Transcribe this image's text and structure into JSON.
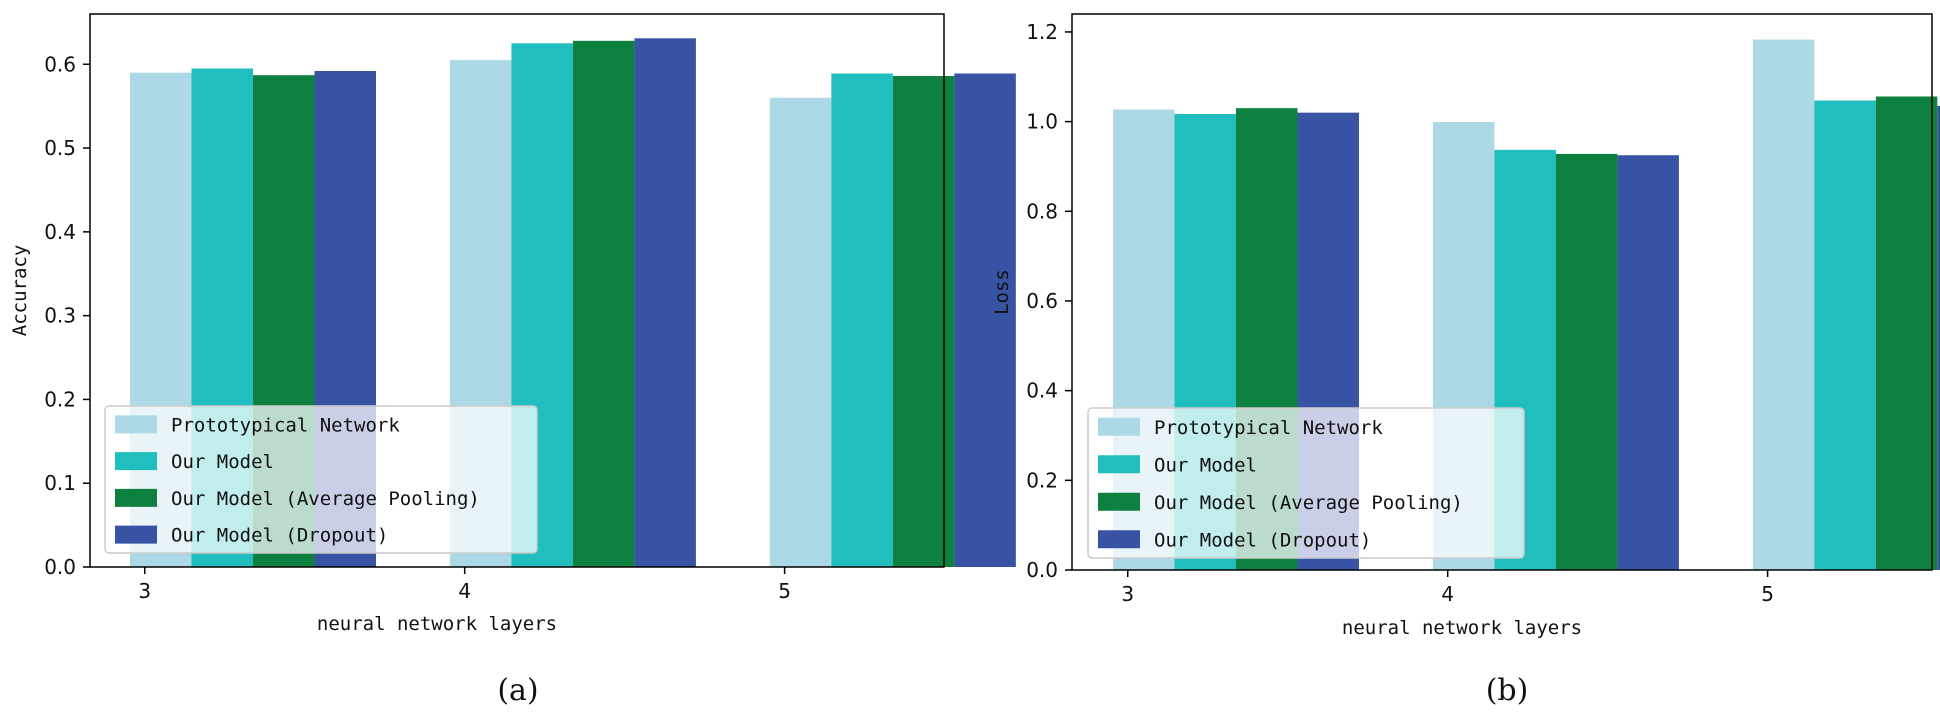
{
  "colors": {
    "proto": "#add8e6",
    "ours": "#20bebe",
    "avgpool": "#0e8040",
    "dropout": "#3953a4"
  },
  "chart_data": [
    {
      "type": "bar",
      "caption": "(a)",
      "xlabel": "neural network layers",
      "ylabel": "Accuracy",
      "categories": [
        "3",
        "4",
        "5"
      ],
      "ylim": [
        0,
        0.66
      ],
      "yticks": [
        {
          "value": 0.0,
          "label": "0.0"
        },
        {
          "value": 0.1,
          "label": "0.1"
        },
        {
          "value": 0.2,
          "label": "0.2"
        },
        {
          "value": 0.3,
          "label": "0.3"
        },
        {
          "value": 0.4,
          "label": "0.4"
        },
        {
          "value": 0.5,
          "label": "0.5"
        },
        {
          "value": 0.6,
          "label": "0.6"
        }
      ],
      "legend_position": "lower-left",
      "series": [
        {
          "name": "Prototypical Network",
          "color_key": "proto",
          "values": [
            0.59,
            0.605,
            0.56
          ]
        },
        {
          "name": "Our Model",
          "color_key": "ours",
          "values": [
            0.595,
            0.625,
            0.589
          ]
        },
        {
          "name": "Our Model (Average Pooling)",
          "color_key": "avgpool",
          "values": [
            0.587,
            0.628,
            0.586
          ]
        },
        {
          "name": "Our Model (Dropout)",
          "color_key": "dropout",
          "values": [
            0.592,
            0.631,
            0.589
          ]
        }
      ]
    },
    {
      "type": "bar",
      "caption": "(b)",
      "xlabel": "neural network layers",
      "ylabel": "Loss",
      "categories": [
        "3",
        "4",
        "5"
      ],
      "ylim": [
        0,
        1.24
      ],
      "yticks": [
        {
          "value": 0.0,
          "label": "0.0"
        },
        {
          "value": 0.2,
          "label": "0.2"
        },
        {
          "value": 0.4,
          "label": "0.4"
        },
        {
          "value": 0.6,
          "label": "0.6"
        },
        {
          "value": 0.8,
          "label": "0.8"
        },
        {
          "value": 1.0,
          "label": "1.0"
        },
        {
          "value": 1.2,
          "label": "1.2"
        }
      ],
      "legend_position": "lower-left",
      "series": [
        {
          "name": "Prototypical Network",
          "color_key": "proto",
          "values": [
            1.027,
            0.999,
            1.183
          ]
        },
        {
          "name": "Our Model",
          "color_key": "ours",
          "values": [
            1.017,
            0.937,
            1.047
          ]
        },
        {
          "name": "Our Model (Average Pooling)",
          "color_key": "avgpool",
          "values": [
            1.03,
            0.928,
            1.056
          ]
        },
        {
          "name": "Our Model (Dropout)",
          "color_key": "dropout",
          "values": [
            1.02,
            0.925,
            1.035
          ]
        }
      ]
    }
  ]
}
